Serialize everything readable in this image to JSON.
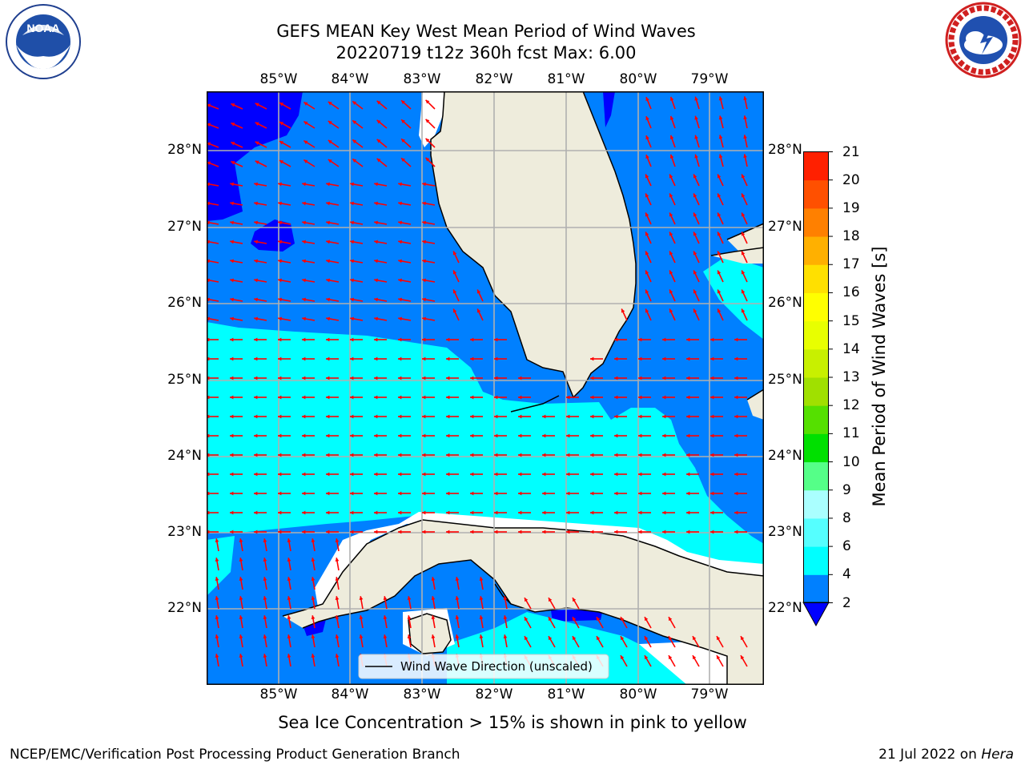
{
  "title": {
    "line1": "GEFS MEAN Key West Mean Period of Wind Waves",
    "line2": "20220719 t12z 360h fcst   Max: 6.00"
  },
  "axes": {
    "lon_labels": [
      "85°W",
      "84°W",
      "83°W",
      "82°W",
      "81°W",
      "80°W",
      "79°W"
    ],
    "lat_labels": [
      "28°N",
      "27°N",
      "26°N",
      "25°N",
      "24°N",
      "23°N",
      "22°N"
    ]
  },
  "map": {
    "lon_range": [
      -86.0,
      -78.3
    ],
    "lat_range": [
      21.05,
      28.78
    ],
    "gridlines": true,
    "colors": {
      "land": "#eeecdc",
      "period_lt2": "#0000ff",
      "period_2_4": "#0080ff",
      "period_4_6": "#00ffff",
      "arrow": "#ff0000",
      "grid": "#b0b0b0"
    },
    "legend": {
      "label": "Wind Wave Direction (unscaled)",
      "placement": "bottom-center"
    }
  },
  "colorbar": {
    "label": "Mean Period of Wind Waves [s]",
    "ticks": [
      "2",
      "4",
      "6",
      "8",
      "9",
      "10",
      "11",
      "12",
      "13",
      "14",
      "15",
      "16",
      "17",
      "18",
      "19",
      "20",
      "21"
    ],
    "colors": [
      "#0080ff",
      "#00ffff",
      "#55ffff",
      "#aaffff",
      "#55ff88",
      "#00e000",
      "#55e000",
      "#a0e000",
      "#c8f000",
      "#e8ff00",
      "#ffff00",
      "#ffe000",
      "#ffb000",
      "#ff8000",
      "#ff5000",
      "#ff2000"
    ],
    "under_color": "#0000ff"
  },
  "notes": {
    "sea_ice": "Sea Ice Concentration > 15% is shown in pink to yellow"
  },
  "footer": {
    "left": "NCEP/EMC/Verification Post Processing Product Generation Branch",
    "right_date": "21 Jul 2022 on",
    "right_host": "Hera"
  },
  "logos": {
    "left_icon": "noaa-logo",
    "right_icon": "national-weather-service-logo"
  }
}
